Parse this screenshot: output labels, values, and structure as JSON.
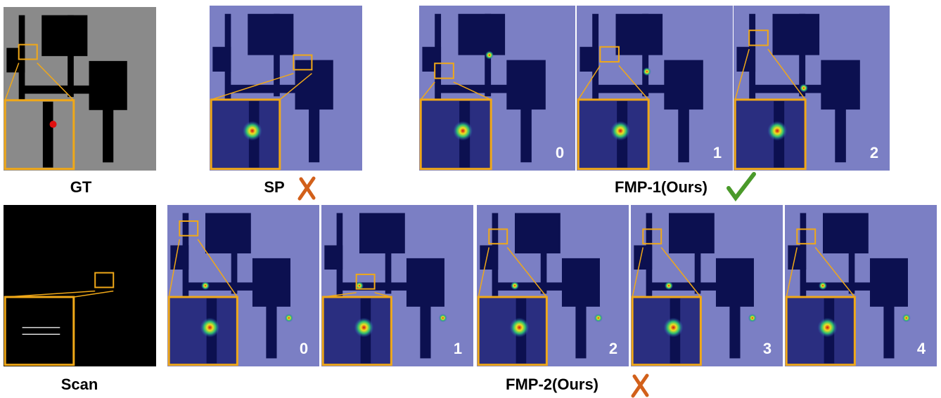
{
  "panels": {
    "gt": {
      "label": "GT"
    },
    "sp": {
      "label": "SP"
    },
    "fmp1": {
      "label": "FMP-1(Ours)",
      "indices": [
        0,
        1,
        2
      ]
    },
    "scan": {
      "label": "Scan"
    },
    "fmp2": {
      "label": "FMP-2(Ours)",
      "indices": [
        0,
        1,
        2,
        3,
        4
      ]
    }
  }
}
